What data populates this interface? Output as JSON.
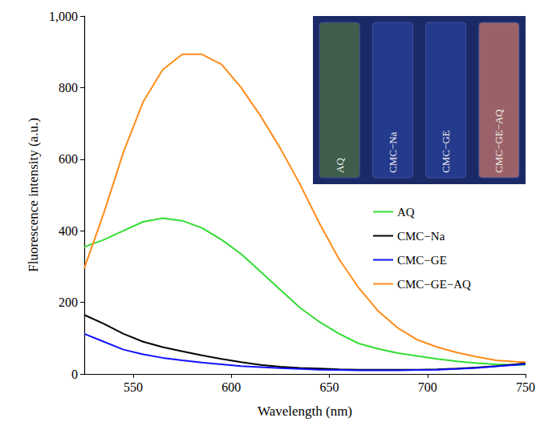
{
  "chart_data": {
    "type": "line",
    "x_label": "Wavelength (nm)",
    "y_label": "Fluorescence intensity (a.u.)",
    "x": [
      525,
      535,
      545,
      555,
      565,
      575,
      585,
      595,
      605,
      615,
      625,
      635,
      645,
      655,
      665,
      675,
      685,
      695,
      705,
      715,
      725,
      735,
      745,
      750
    ],
    "series": [
      {
        "name": "AQ",
        "color": "#33dd33",
        "values": [
          355,
          375,
          400,
          425,
          435,
          428,
          408,
          375,
          335,
          285,
          235,
          185,
          145,
          112,
          85,
          70,
          58,
          50,
          42,
          35,
          30,
          27,
          25,
          25
        ]
      },
      {
        "name": "CMC−Na",
        "color": "#000000",
        "values": [
          165,
          140,
          112,
          90,
          75,
          63,
          52,
          42,
          33,
          25,
          20,
          17,
          15,
          13,
          12,
          12,
          12,
          12,
          13,
          15,
          18,
          22,
          27,
          30
        ]
      },
      {
        "name": "CMC−GE",
        "color": "#1010ff",
        "values": [
          112,
          90,
          68,
          55,
          45,
          38,
          32,
          27,
          22,
          19,
          16,
          14,
          12,
          11,
          10,
          10,
          10,
          11,
          12,
          14,
          17,
          21,
          25,
          28
        ]
      },
      {
        "name": "CMC−GE−AQ",
        "color": "#ff8c1a",
        "values": [
          295,
          450,
          620,
          760,
          850,
          893,
          893,
          865,
          800,
          720,
          630,
          530,
          420,
          320,
          240,
          175,
          128,
          95,
          75,
          60,
          48,
          38,
          34,
          33
        ]
      }
    ],
    "xlim": [
      525,
      750
    ],
    "xticks": [
      550,
      600,
      650,
      700,
      750
    ],
    "ylim": [
      0,
      1000
    ],
    "yticks": [
      0,
      200,
      400,
      600,
      800,
      1000
    ],
    "grid": false,
    "legend": "right",
    "annotations": [
      "AQ",
      "CMC−Na",
      "CMC−GE",
      "CMC−GE−AQ"
    ]
  }
}
